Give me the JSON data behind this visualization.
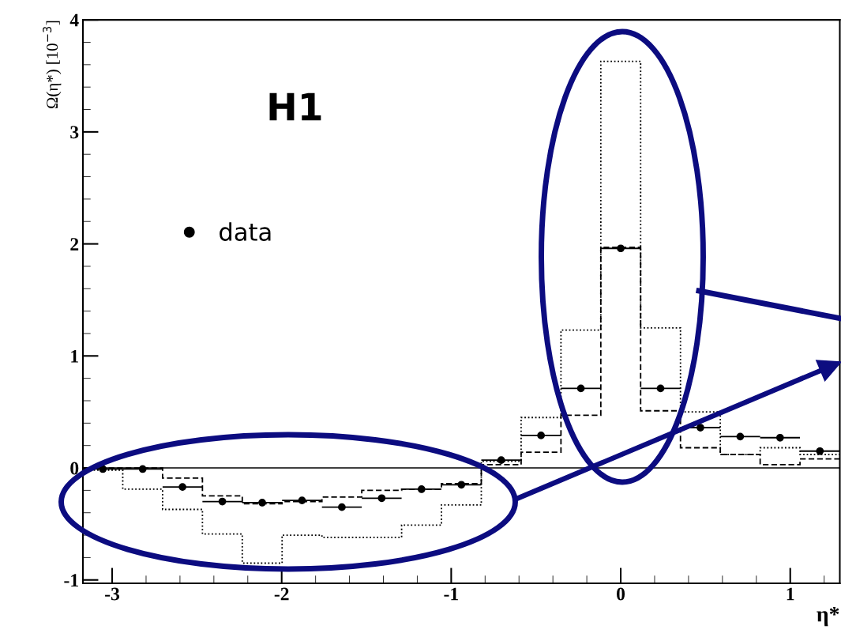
{
  "chart_data": {
    "type": "histogram",
    "ylabel": "Ω(η*) [10$^{−3}$]",
    "xlabel": "η*",
    "annotations": [
      "H1"
    ],
    "bins": [
      -3.1725,
      -2.9375,
      -2.7025,
      -2.4675,
      -2.2325,
      -1.9975,
      -1.7625,
      -1.5275,
      -1.2925,
      -1.0575,
      -0.8225,
      -0.5875,
      -0.3525,
      -0.1175,
      0.1175,
      0.3525,
      0.5875,
      0.8225,
      1.0575,
      1.2925
    ],
    "series": [
      {
        "type": "histogram",
        "color": "#000000",
        "line_style": "dashed",
        "values": [
          0.0,
          0.0,
          -0.09,
          -0.25,
          -0.32,
          -0.3,
          -0.26,
          -0.2,
          -0.19,
          -0.14,
          0.03,
          0.14,
          0.47,
          1.97,
          0.51,
          0.18,
          0.12,
          0.03,
          0.08
        ]
      },
      {
        "type": "histogram",
        "color": "#000000",
        "line_style": "dotted",
        "values": [
          -0.02,
          -0.19,
          -0.37,
          -0.59,
          -0.85,
          -0.6,
          -0.62,
          -0.62,
          -0.51,
          -0.33,
          0.06,
          0.45,
          1.23,
          3.63,
          1.25,
          0.5,
          0.12,
          0.18,
          0.12
        ]
      },
      {
        "type": "scatter",
        "name": "data",
        "color": "#000000",
        "marker": "circle",
        "x": [
          -3.055,
          -2.82,
          -2.585,
          -2.35,
          -2.115,
          -1.88,
          -1.645,
          -1.41,
          -1.175,
          -0.94,
          -0.705,
          -0.47,
          -0.235,
          0,
          0.235,
          0.47,
          0.705,
          0.94,
          1.175
        ],
        "values": [
          -0.01,
          -0.01,
          -0.17,
          -0.3,
          -0.31,
          -0.29,
          -0.35,
          -0.27,
          -0.19,
          -0.15,
          0.07,
          0.29,
          0.71,
          1.96,
          0.71,
          0.36,
          0.28,
          0.27,
          0.15
        ],
        "xerrors": [
          0.1175,
          0.1175,
          0.1175,
          0.1175,
          0.1175,
          0.1175,
          0.1175,
          0.1175,
          0.1175,
          0.1175,
          0.1175,
          0.1175,
          0.1175,
          0.1175,
          0.1175,
          0.1175,
          0.1175,
          0.1175,
          0.1175
        ]
      }
    ],
    "ref_lines": [
      {
        "axis": "y",
        "value": 0,
        "color": "#000000",
        "line_style": "solid"
      }
    ],
    "xlim": [
      -3.1725,
      1.2925
    ],
    "ylim": [
      -1.03,
      4
    ],
    "xticks": [
      -3,
      -2,
      -1,
      0,
      1
    ],
    "yticks": [
      -1,
      0,
      1,
      2,
      3,
      4
    ],
    "legend": "center left",
    "grid": false
  }
}
